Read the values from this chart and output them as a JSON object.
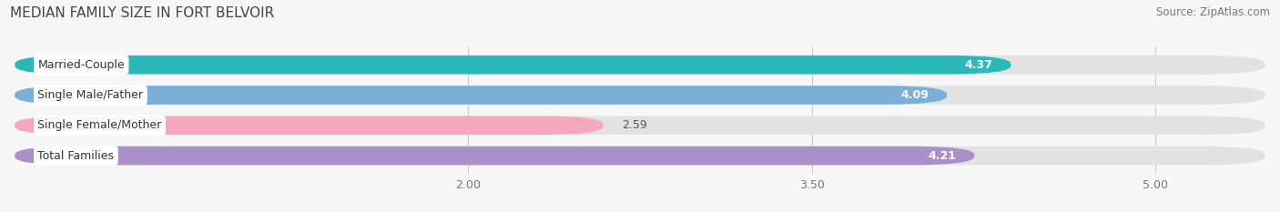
{
  "title": "MEDIAN FAMILY SIZE IN FORT BELVOIR",
  "source": "Source: ZipAtlas.com",
  "categories": [
    "Married-Couple",
    "Single Male/Father",
    "Single Female/Mother",
    "Total Families"
  ],
  "values": [
    4.37,
    4.09,
    2.59,
    4.21
  ],
  "bar_colors": [
    "#2ab8b8",
    "#7ab0d8",
    "#f4a8c0",
    "#a990c8"
  ],
  "xlim_data": [
    0,
    5.0
  ],
  "xlim_display": [
    0,
    5.5
  ],
  "xticks": [
    2.0,
    3.5,
    5.0
  ],
  "xtick_labels": [
    "2.00",
    "3.50",
    "5.00"
  ],
  "bar_height": 0.62,
  "background_color": "#f7f7f7",
  "bar_background_color": "#e2e2e2",
  "title_fontsize": 11,
  "source_fontsize": 8.5,
  "label_fontsize": 9,
  "value_fontsize": 9,
  "tick_fontsize": 9
}
